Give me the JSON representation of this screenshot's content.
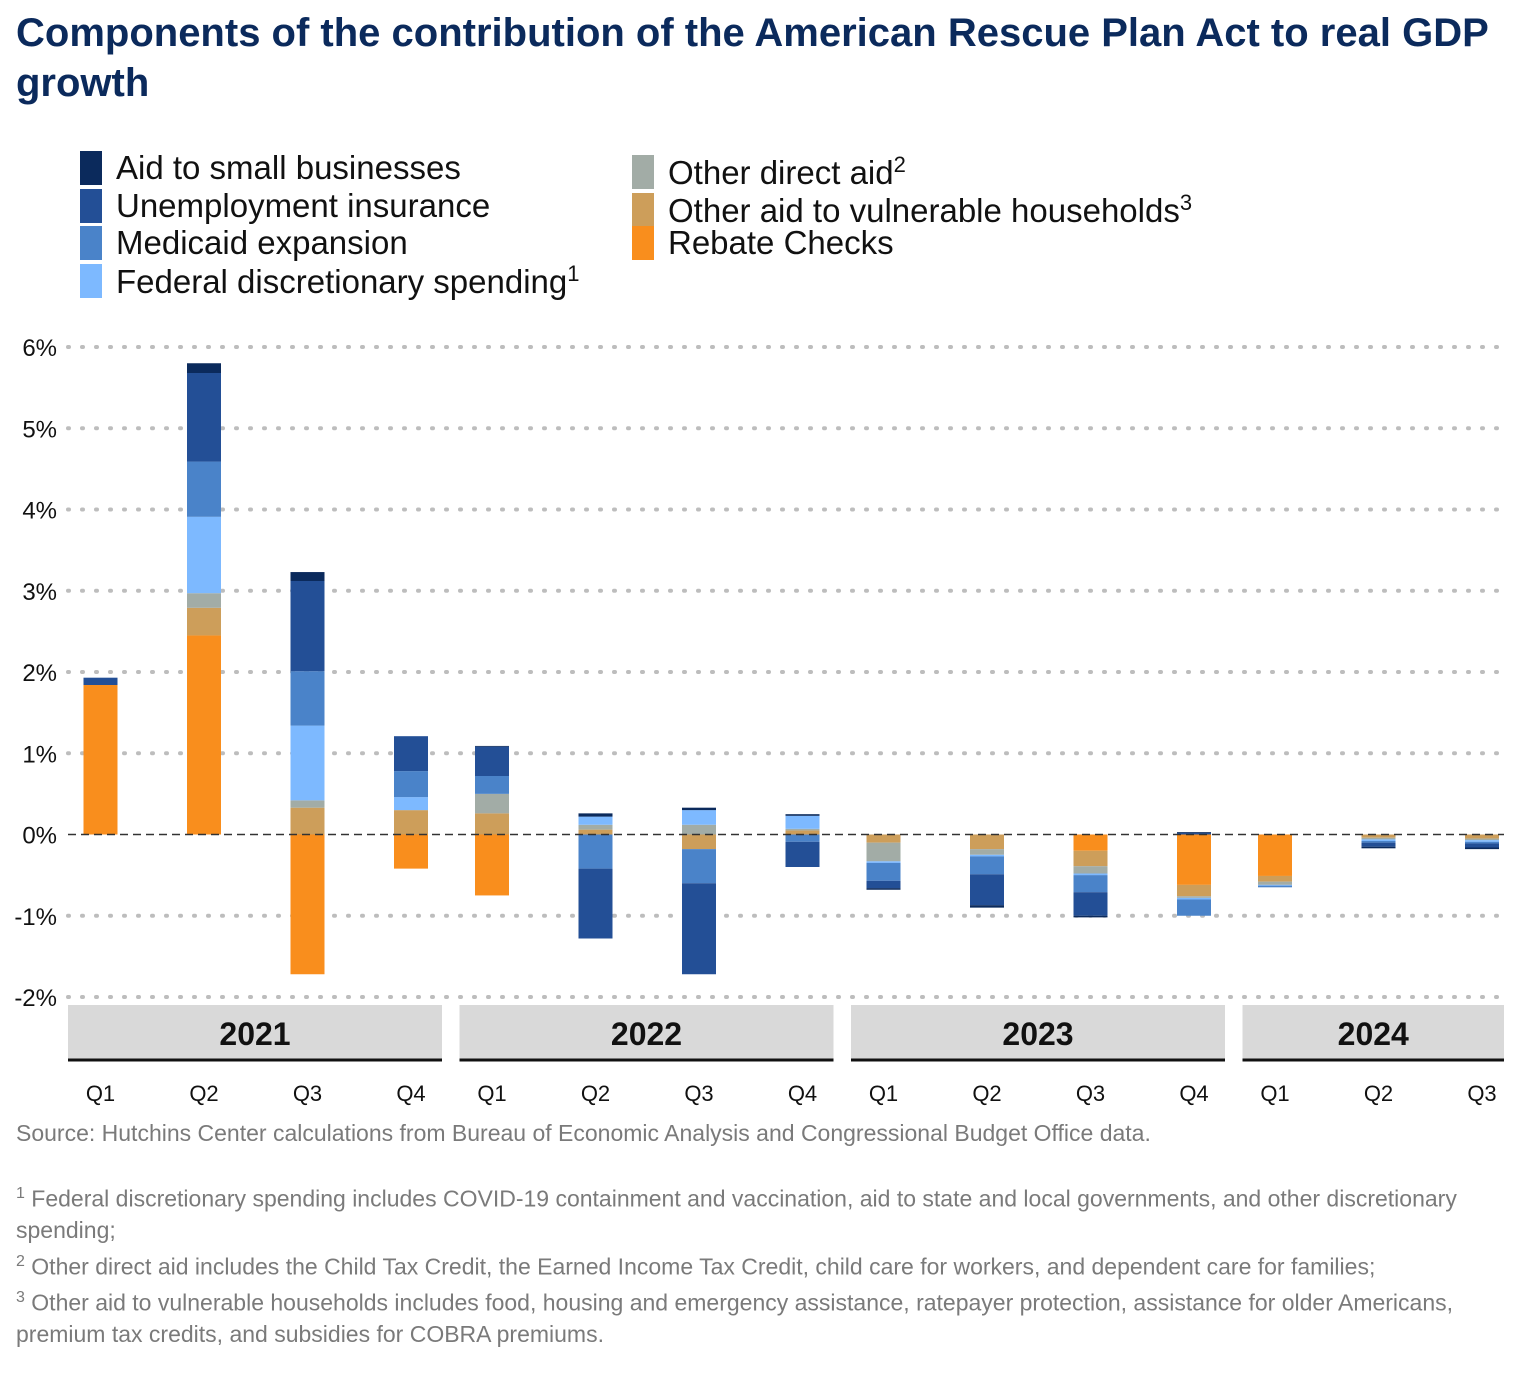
{
  "title": "Components of the contribution of the American Rescue Plan Act to real GDP growth",
  "source": "Source: Hutchins Center calculations from Bureau of Economic Analysis and Congressional Budget Office data.",
  "footnotes": [
    {
      "marker": "1",
      "text": "Federal discretionary spending includes COVID-19 containment and vaccination, aid to state and local governments, and other discretionary spending;"
    },
    {
      "marker": "2",
      "text": "Other direct aid includes the Child Tax Credit, the Earned Income Tax Credit, child care for workers, and dependent care for families;"
    },
    {
      "marker": "3",
      "text": "Other aid to vulnerable households includes food, housing and emergency assistance, ratepayer protection, assistance for older Americans, premium tax credits, and subsidies for COBRA premiums."
    }
  ],
  "colors": {
    "title": "#0b2a5c",
    "grid": "#bdbdbd",
    "year_band": "#d9d9d9",
    "source_text": "#7a7a7a"
  },
  "chart_data": {
    "type": "bar",
    "stacked": true,
    "title": "Components of the contribution of the American Rescue Plan Act to real GDP growth",
    "ylim": [
      -2,
      6
    ],
    "yticks": [
      6,
      5,
      4,
      3,
      2,
      1,
      0,
      -1,
      -2
    ],
    "ytick_labels": [
      "6%",
      "5%",
      "4%",
      "3%",
      "2%",
      "1%",
      "0%",
      "-1%",
      "-2%"
    ],
    "grid": "horizontal dotted",
    "legend_position": "top",
    "years": [
      {
        "label": "2021",
        "quarters": [
          "Q1",
          "Q2",
          "Q3",
          "Q4"
        ]
      },
      {
        "label": "2022",
        "quarters": [
          "Q1",
          "Q2",
          "Q3",
          "Q4"
        ]
      },
      {
        "label": "2023",
        "quarters": [
          "Q1",
          "Q2",
          "Q3",
          "Q4"
        ]
      },
      {
        "label": "2024",
        "quarters": [
          "Q1",
          "Q2",
          "Q3"
        ]
      }
    ],
    "series": [
      {
        "name": "Rebate Checks",
        "footnote": "",
        "color": "#f98e1d",
        "values": [
          1.84,
          2.45,
          -1.72,
          -0.42,
          -0.75,
          0,
          0,
          0,
          0,
          0,
          -0.2,
          -0.62,
          -0.51,
          0,
          0
        ]
      },
      {
        "name": "Other aid to vulnerable households",
        "footnote": "3",
        "color": "#cd9e5a",
        "values": [
          0,
          0.34,
          0.33,
          0.3,
          0.26,
          0.06,
          -0.18,
          0.05,
          -0.1,
          -0.18,
          -0.19,
          -0.14,
          -0.07,
          -0.04,
          -0.05
        ]
      },
      {
        "name": "Other direct aid",
        "footnote": "2",
        "color": "#a2aca6",
        "values": [
          0,
          0.18,
          0.09,
          0,
          0.24,
          0.06,
          0.12,
          0.02,
          -0.23,
          -0.07,
          -0.09,
          -0.02,
          -0.04,
          -0.02,
          -0.02
        ]
      },
      {
        "name": "Federal discretionary spending",
        "footnote": "1",
        "color": "#7db9ff",
        "values": [
          0,
          0.94,
          0.92,
          0.16,
          0,
          0.1,
          0.18,
          0.16,
          -0.02,
          -0.02,
          -0.02,
          -0.02,
          -0.01,
          -0.02,
          -0.02
        ]
      },
      {
        "name": "Medicaid expansion",
        "footnote": "",
        "color": "#4a83c9",
        "values": [
          0,
          0.68,
          0.67,
          0.32,
          0.22,
          -0.42,
          -0.42,
          -0.09,
          -0.22,
          -0.22,
          -0.21,
          -0.2,
          -0.02,
          -0.02,
          -0.02
        ]
      },
      {
        "name": "Unemployment insurance",
        "footnote": "",
        "color": "#234f96",
        "values": [
          0.09,
          1.09,
          1.11,
          0.43,
          0.36,
          -0.86,
          -1.12,
          -0.31,
          -0.09,
          -0.38,
          -0.29,
          0.02,
          0,
          -0.05,
          -0.05
        ]
      },
      {
        "name": "Aid to small businesses",
        "footnote": "",
        "color": "#0b2a5c",
        "values": [
          0,
          0.12,
          0.11,
          0,
          0.01,
          0.04,
          0.03,
          0.02,
          -0.02,
          -0.03,
          -0.02,
          0.01,
          0,
          -0.02,
          -0.02
        ]
      }
    ]
  },
  "legend": {
    "left_column": [
      {
        "label": "Aid to small businesses",
        "sup": "",
        "color": "#0b2a5c"
      },
      {
        "label": "Unemployment insurance",
        "sup": "",
        "color": "#234f96"
      },
      {
        "label": "Medicaid expansion",
        "sup": "",
        "color": "#4a83c9"
      },
      {
        "label": "Federal discretionary spending",
        "sup": "1",
        "color": "#7db9ff"
      }
    ],
    "right_column": [
      {
        "label": "Other direct aid",
        "sup": "2",
        "color": "#a2aca6"
      },
      {
        "label": "Other aid to vulnerable households",
        "sup": "3",
        "color": "#cd9e5a"
      },
      {
        "label": "Rebate Checks",
        "sup": "",
        "color": "#f98e1d"
      }
    ]
  }
}
